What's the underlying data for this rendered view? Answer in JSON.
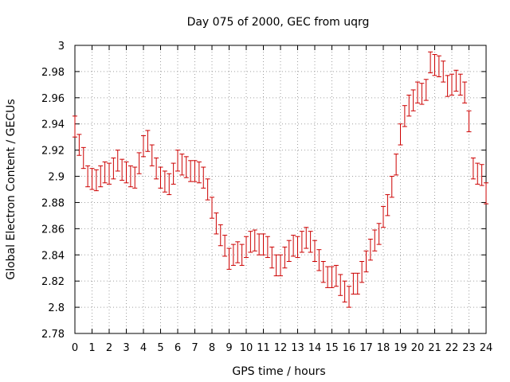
{
  "chart_data": {
    "type": "scatter",
    "title": "Day 075 of 2000, GEC from uqrg",
    "xlabel": "GPS time / hours",
    "ylabel": "Global Electron Content / GECUs",
    "xlim": [
      0,
      24
    ],
    "ylim": [
      2.78,
      3.0
    ],
    "x_ticks": [
      0,
      1,
      2,
      3,
      4,
      5,
      6,
      7,
      8,
      9,
      10,
      11,
      12,
      13,
      14,
      15,
      16,
      17,
      18,
      19,
      20,
      21,
      22,
      23,
      24
    ],
    "y_ticks": [
      2.78,
      2.8,
      2.82,
      2.84,
      2.86,
      2.88,
      2.9,
      2.92,
      2.94,
      2.96,
      2.98,
      3.0
    ],
    "y_tick_labels": [
      "2.78",
      "2.8",
      "2.82",
      "2.84",
      "2.86",
      "2.88",
      "2.9",
      "2.92",
      "2.94",
      "2.96",
      "2.98",
      "3"
    ],
    "grid": true,
    "error_bar_halfwidth": 0.008,
    "series_color": "#cc0000",
    "series": [
      {
        "x": [
          0.0,
          0.25,
          0.5,
          0.75,
          1.0,
          1.25,
          1.5,
          1.75,
          2.0,
          2.25,
          2.5,
          2.75,
          3.0,
          3.25,
          3.5,
          3.75,
          4.0,
          4.25,
          4.5,
          4.75,
          5.0,
          5.25,
          5.5,
          5.75,
          6.0,
          6.25,
          6.5,
          6.75,
          7.0,
          7.25,
          7.5,
          7.75,
          8.0,
          8.25,
          8.5,
          8.75,
          9.0,
          9.25,
          9.5,
          9.75,
          10.0,
          10.25,
          10.5,
          10.75,
          11.0,
          11.25,
          11.5,
          11.75,
          12.0,
          12.25,
          12.5,
          12.75,
          13.0,
          13.25,
          13.5,
          13.75,
          14.0,
          14.25,
          14.5,
          14.75,
          15.0,
          15.25,
          15.5,
          15.75,
          16.0,
          16.25,
          16.5,
          16.75,
          17.0,
          17.25,
          17.5,
          17.75,
          18.0,
          18.25,
          18.5,
          18.75,
          19.0,
          19.25,
          19.5,
          19.75,
          20.0,
          20.25,
          20.5,
          20.75,
          21.0,
          21.25,
          21.5,
          21.75,
          22.0,
          22.25,
          22.5,
          22.75,
          23.0,
          23.25,
          23.5,
          23.75,
          24.0
        ],
        "y": [
          2.938,
          2.924,
          2.914,
          2.9,
          2.898,
          2.897,
          2.9,
          2.903,
          2.902,
          2.906,
          2.912,
          2.905,
          2.903,
          2.9,
          2.899,
          2.91,
          2.923,
          2.927,
          2.916,
          2.906,
          2.899,
          2.896,
          2.894,
          2.902,
          2.912,
          2.909,
          2.907,
          2.904,
          2.904,
          2.903,
          2.899,
          2.89,
          2.876,
          2.864,
          2.855,
          2.847,
          2.837,
          2.84,
          2.842,
          2.84,
          2.846,
          2.85,
          2.851,
          2.848,
          2.848,
          2.846,
          2.838,
          2.832,
          2.832,
          2.838,
          2.843,
          2.847,
          2.846,
          2.85,
          2.853,
          2.85,
          2.843,
          2.836,
          2.827,
          2.823,
          2.823,
          2.824,
          2.817,
          2.812,
          2.808,
          2.818,
          2.818,
          2.827,
          2.835,
          2.844,
          2.851,
          2.856,
          2.869,
          2.878,
          2.892,
          2.909,
          2.932,
          2.946,
          2.954,
          2.958,
          2.964,
          2.963,
          2.966,
          2.987,
          2.985,
          2.984,
          2.98,
          2.969,
          2.97,
          2.973,
          2.97,
          2.964,
          2.942,
          2.906,
          2.902,
          2.901,
          2.887
        ]
      }
    ]
  }
}
